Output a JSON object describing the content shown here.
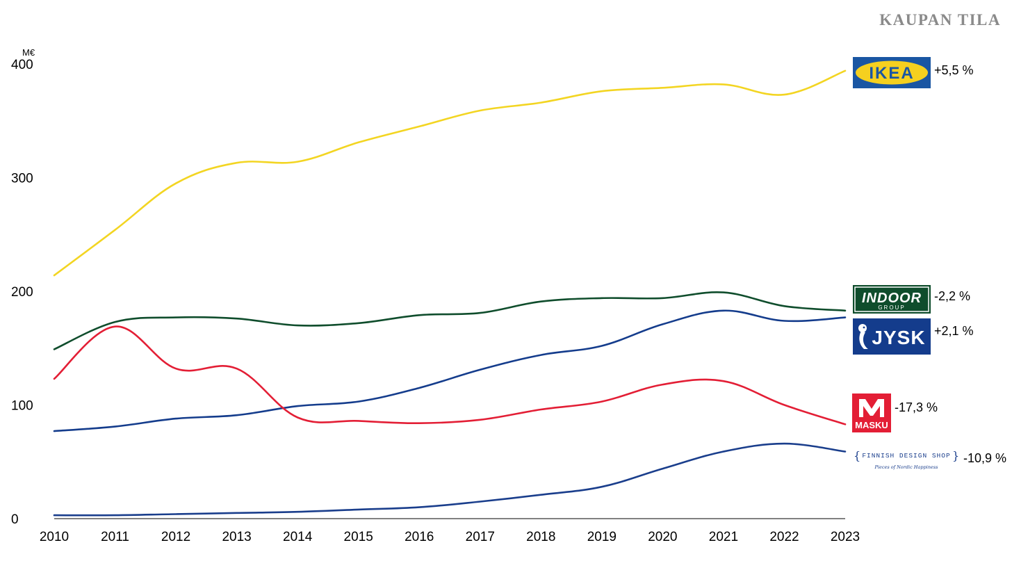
{
  "header": {
    "brand": "KAUPAN TILA"
  },
  "chart_data": {
    "type": "line",
    "title": "",
    "xlabel": "",
    "ylabel": "M€",
    "unit": "M€",
    "x": [
      2010,
      2011,
      2012,
      2013,
      2014,
      2015,
      2016,
      2017,
      2018,
      2019,
      2020,
      2021,
      2022,
      2023
    ],
    "ylim": [
      0,
      400
    ],
    "yticks": [
      0,
      100,
      200,
      300,
      400
    ],
    "grid": false,
    "series": [
      {
        "name": "IKEA",
        "color": "#f3d522",
        "values": [
          214,
          254,
          295,
          313,
          314,
          331,
          345,
          359,
          366,
          376,
          379,
          382,
          373,
          394
        ],
        "change": "+5,5 %"
      },
      {
        "name": "INDOOR GROUP",
        "color": "#0f4d2c",
        "values": [
          149,
          173,
          177,
          176,
          170,
          172,
          179,
          181,
          191,
          194,
          194,
          199,
          187,
          183
        ],
        "change": "-2,2 %"
      },
      {
        "name": "JYSK",
        "color": "#143c8c",
        "values": [
          77,
          81,
          88,
          91,
          99,
          103,
          115,
          131,
          144,
          152,
          171,
          183,
          174,
          177
        ],
        "change": "+2,1 %"
      },
      {
        "name": "MASKU",
        "color": "#e31e35",
        "values": [
          123,
          169,
          132,
          132,
          89,
          86,
          84,
          87,
          96,
          103,
          118,
          121,
          100,
          83
        ],
        "change": "-17,3 %"
      },
      {
        "name": "FINNISH DESIGN SHOP",
        "color": "#1a3e8c",
        "values": [
          3,
          3,
          4,
          5,
          6,
          8,
          10,
          15,
          21,
          28,
          44,
          59,
          66,
          59
        ],
        "change": "-10,9 %"
      }
    ]
  },
  "logos": {
    "ikea": {
      "text": "IKEA",
      "bg": "#1a56a3",
      "fg": "#f5d01f"
    },
    "indoor": {
      "text": "INDOOR",
      "sub": "GROUP",
      "bg": "#0f4d2c",
      "fg": "#ffffff"
    },
    "jysk": {
      "text": "JYSK",
      "bg": "#143c8c",
      "fg": "#ffffff"
    },
    "masku": {
      "text": "MASKU",
      "bg": "#e31e35",
      "fg": "#ffffff"
    },
    "fds": {
      "text": "FINNISH DESIGN SHOP",
      "sub": "Pieces of Nordic Happiness",
      "color": "#1a3e8c"
    }
  }
}
